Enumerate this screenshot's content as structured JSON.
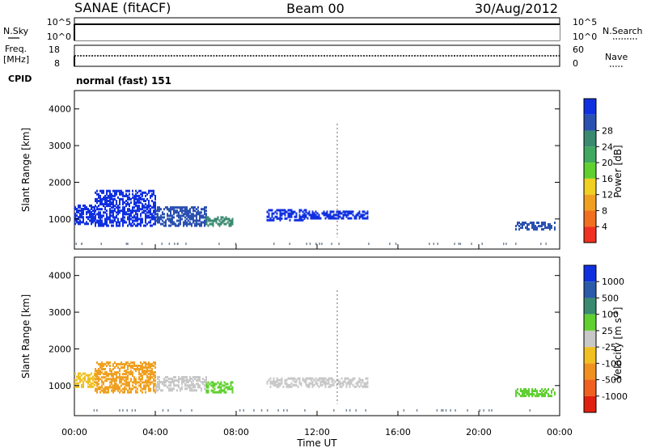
{
  "header": {
    "station": "SANAE (fitACF)",
    "beam": "Beam 00",
    "date": "30/Aug/2012"
  },
  "noise_panel": {
    "left_label": "N.Sky",
    "right_label": "N.Search",
    "left_ticks": [
      "10^5",
      "10^0"
    ],
    "right_ticks": [
      "10^5",
      "10^0"
    ]
  },
  "freq_panel": {
    "left_label_1": "Freq.",
    "left_label_2": "[MHz]",
    "right_label": "Nave",
    "left_ticks": [
      "18",
      "8"
    ],
    "right_ticks": [
      "60",
      "0"
    ]
  },
  "cpid": {
    "label": "CPID",
    "value": "normal (fast) 151"
  },
  "axes": {
    "ylabel": "Slant Range [km]",
    "xlabel": "Time UT",
    "y_ticks": [
      "1000",
      "2000",
      "3000",
      "4000"
    ],
    "x_ticks": [
      "00:00",
      "04:00",
      "08:00",
      "12:00",
      "16:00",
      "20:00",
      "00:00"
    ]
  },
  "power_scale": {
    "label": "Power [dB]",
    "ticks": [
      "4",
      "8",
      "12",
      "16",
      "20",
      "24",
      "28"
    ],
    "colors": [
      "#1030e0",
      "#2a50b0",
      "#3a8a70",
      "#40a860",
      "#60d030",
      "#f0d020",
      "#f0a020",
      "#f07020",
      "#f03020"
    ]
  },
  "velocity_scale": {
    "label": "Velocity [m s",
    "label_sup": "-1",
    "label_end": "]",
    "ticks": [
      "1000",
      "500",
      "100",
      "25",
      "-25",
      "-100",
      "-500",
      "-1000"
    ],
    "colors": [
      "#1030e0",
      "#2a5aa8",
      "#3a8a70",
      "#60d030",
      "#c8c8c8",
      "#f0c020",
      "#f09020",
      "#f06020",
      "#e02010"
    ]
  },
  "chart_data": {
    "type": "heatmap",
    "x_range_hours": [
      0,
      24
    ],
    "y_range_km": [
      180,
      4500
    ],
    "power_echo_bands": [
      {
        "t_start": 0.0,
        "t_end": 1.0,
        "range_low": 900,
        "range_high": 1400,
        "color": "#1030e0"
      },
      {
        "t_start": 1.0,
        "t_end": 4.0,
        "range_low": 850,
        "range_high": 1800,
        "color": "#1030e0"
      },
      {
        "t_start": 4.0,
        "t_end": 6.5,
        "range_low": 850,
        "range_high": 1350,
        "color": "#2a50b0"
      },
      {
        "t_start": 6.5,
        "t_end": 7.8,
        "range_low": 850,
        "range_high": 1100,
        "color": "#3a8a70"
      },
      {
        "t_start": 9.5,
        "t_end": 11.5,
        "range_low": 1000,
        "range_high": 1300,
        "color": "#1030e0"
      },
      {
        "t_start": 11.5,
        "t_end": 14.5,
        "range_low": 1050,
        "range_high": 1250,
        "color": "#1030e0"
      },
      {
        "t_start": 21.8,
        "t_end": 23.8,
        "range_low": 750,
        "range_high": 950,
        "color": "#2a50b0"
      }
    ],
    "velocity_echo_bands": [
      {
        "t_start": 0.0,
        "t_end": 1.0,
        "range_low": 1000,
        "range_high": 1400,
        "color": "#f0c020"
      },
      {
        "t_start": 1.0,
        "t_end": 4.0,
        "range_low": 850,
        "range_high": 1700,
        "color": "#f0a020"
      },
      {
        "t_start": 4.0,
        "t_end": 6.5,
        "range_low": 900,
        "range_high": 1300,
        "color": "#c8c8c8"
      },
      {
        "t_start": 6.5,
        "t_end": 7.8,
        "range_low": 850,
        "range_high": 1150,
        "color": "#60d030"
      },
      {
        "t_start": 9.5,
        "t_end": 14.5,
        "range_low": 1000,
        "range_high": 1250,
        "color": "#c8c8c8"
      },
      {
        "t_start": 21.8,
        "t_end": 23.8,
        "range_low": 750,
        "range_high": 950,
        "color": "#60d030"
      }
    ]
  }
}
